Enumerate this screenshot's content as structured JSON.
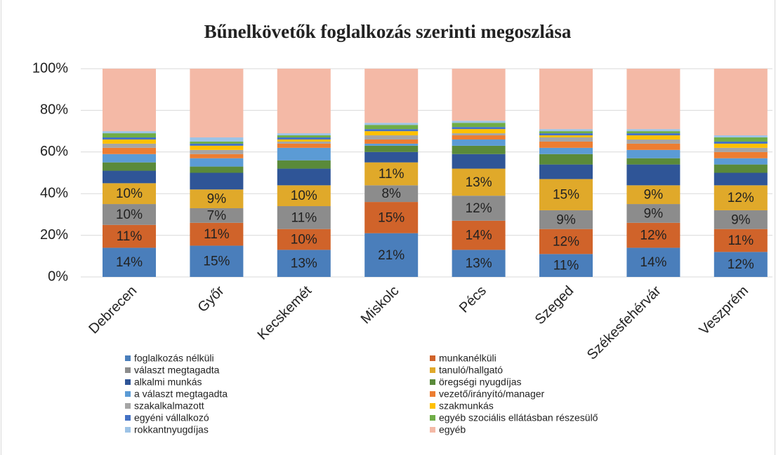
{
  "chart_data": {
    "type": "stacked_bar_100",
    "title": "Bűnelkövetők foglalkozás szerinti megoszlása",
    "categories": [
      "Debrecen",
      "Győr",
      "Kecskemét",
      "Miskolc",
      "Pécs",
      "Szeged",
      "Székesfehérvár",
      "Veszprém"
    ],
    "ylim": [
      0,
      100
    ],
    "yticks": [
      {
        "value": 0,
        "label": "0%"
      },
      {
        "value": 20,
        "label": "20%"
      },
      {
        "value": 40,
        "label": "40%"
      },
      {
        "value": 60,
        "label": "60%"
      },
      {
        "value": 80,
        "label": "80%"
      },
      {
        "value": 100,
        "label": "100%"
      }
    ],
    "grid": true,
    "legend": "bottom",
    "series": [
      {
        "name": "foglalkozás nélküli",
        "color": "#4a7ebb",
        "values": [
          14,
          15,
          13,
          21,
          13,
          11,
          14,
          12
        ],
        "value_labels": [
          "14%",
          "15%",
          "13%",
          "21%",
          "13%",
          "11%",
          "14%",
          "12%"
        ]
      },
      {
        "name": "munkanélküli",
        "color": "#d0632a",
        "values": [
          11,
          11,
          10,
          15,
          14,
          12,
          12,
          11
        ],
        "value_labels": [
          "11%",
          "11%",
          "10%",
          "15%",
          "14%",
          "12%",
          "12%",
          "11%"
        ]
      },
      {
        "name": "választ megtagadta",
        "color": "#8c8c8c",
        "values": [
          10,
          7,
          11,
          8,
          12,
          9,
          9,
          9
        ],
        "value_labels": [
          "10%",
          "7%",
          "11%",
          "8%",
          "12%",
          "9%",
          "9%",
          "9%"
        ]
      },
      {
        "name": "tanuló/hallgató",
        "color": "#e0a92a",
        "values": [
          10,
          9,
          10,
          11,
          13,
          15,
          9,
          12
        ],
        "value_labels": [
          "10%",
          "9%",
          "10%",
          "11%",
          "13%",
          "15%",
          "9%",
          "12%"
        ]
      },
      {
        "name": "alkalmi munkás",
        "color": "#2f5597",
        "values": [
          6,
          8,
          8,
          5,
          7,
          7,
          10,
          6
        ]
      },
      {
        "name": "öregségi nyugdíjas",
        "color": "#5a8a3a",
        "values": [
          4,
          3,
          4,
          3,
          4,
          5,
          3,
          4
        ]
      },
      {
        "name": "a választ megtagadta",
        "color": "#5b9bd5",
        "values": [
          4,
          4,
          6,
          1,
          3,
          3,
          4,
          3
        ]
      },
      {
        "name": "vezető/irányító/manager",
        "color": "#ed7d31",
        "values": [
          3,
          2,
          2,
          2,
          2,
          3,
          3,
          3
        ]
      },
      {
        "name": "szakalkalmazott",
        "color": "#a5a5a5",
        "values": [
          2,
          2,
          1,
          2,
          1,
          2,
          2,
          2
        ]
      },
      {
        "name": "szakmunkás",
        "color": "#ffc000",
        "values": [
          2,
          2,
          1,
          2,
          2,
          1,
          2,
          2
        ]
      },
      {
        "name": "egyéni vállalkozó",
        "color": "#4472c4",
        "values": [
          1,
          1,
          1,
          1,
          1,
          1,
          1,
          1
        ]
      },
      {
        "name": "egyéb szociális ellátásban részesülő",
        "color": "#70ad47",
        "values": [
          2,
          1,
          1,
          2,
          2,
          1,
          1,
          2
        ]
      },
      {
        "name": "rokkantnyugdíjas",
        "color": "#9dc3e6",
        "values": [
          1,
          2,
          1,
          1,
          1,
          1,
          1,
          1
        ]
      },
      {
        "name": "egyéb",
        "color": "#f4b9a6",
        "values": [
          30,
          33,
          31,
          26,
          25,
          29,
          29,
          32
        ]
      }
    ]
  }
}
